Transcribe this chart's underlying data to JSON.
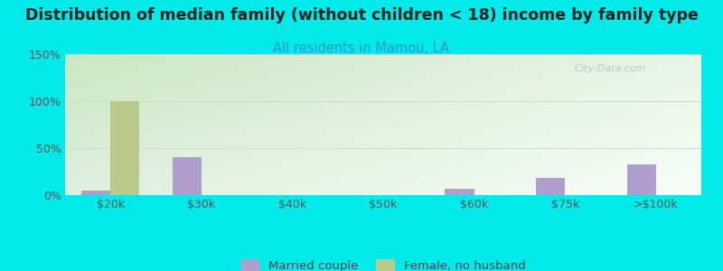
{
  "title": "Distribution of median family (without children < 18) income by family type",
  "subtitle": "All residents in Mamou, LA",
  "categories": [
    "$20k",
    "$30k",
    "$40k",
    "$50k",
    "$60k",
    "$75k",
    ">$100k"
  ],
  "married_couple": [
    5,
    40,
    0,
    0,
    7,
    18,
    33
  ],
  "female_no_husband": [
    100,
    0,
    0,
    0,
    0,
    0,
    0
  ],
  "married_color": "#b09fcc",
  "female_color": "#bbc98a",
  "bg_color": "#00eaea",
  "grad_top_left": "#c8e8c8",
  "grad_bottom_right": "#f0f8f0",
  "ylim": [
    0,
    150
  ],
  "yticks": [
    0,
    50,
    100,
    150
  ],
  "ytick_labels": [
    "0%",
    "50%",
    "100%",
    "150%"
  ],
  "bar_width": 0.32,
  "legend_married": "Married couple",
  "legend_female": "Female, no husband",
  "title_fontsize": 12.5,
  "subtitle_fontsize": 10.5,
  "tick_fontsize": 9,
  "watermark": "City-Data.com"
}
